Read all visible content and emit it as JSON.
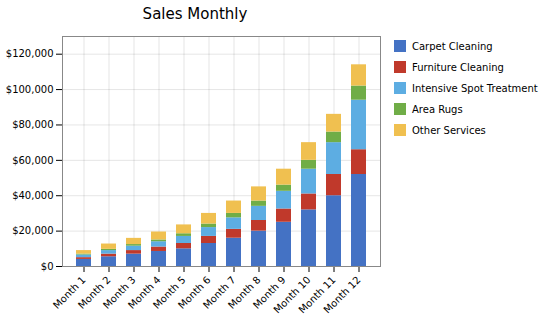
{
  "chart_data": {
    "type": "bar",
    "stacked": true,
    "title": "Sales Monthly",
    "categories": [
      "Month 1",
      "Month 2",
      "Month 3",
      "Month 4",
      "Month 5",
      "Month 6",
      "Month 7",
      "Month 8",
      "Month 9",
      "Month 10",
      "Month 11",
      "Month 12"
    ],
    "series": [
      {
        "name": "Carpet Cleaning",
        "color": "#4472C4",
        "values": [
          4000,
          5500,
          7000,
          8500,
          10000,
          13000,
          16000,
          20000,
          25000,
          32000,
          40000,
          52000
        ]
      },
      {
        "name": "Furniture Cleaning",
        "color": "#C0392B",
        "values": [
          1000,
          1500,
          2000,
          2500,
          3000,
          4000,
          5000,
          6000,
          7500,
          9000,
          12000,
          14000
        ]
      },
      {
        "name": "Intensive Spot Treatment",
        "color": "#5DADE2",
        "values": [
          1500,
          2000,
          2500,
          3000,
          4000,
          5000,
          6500,
          8000,
          10000,
          14000,
          18000,
          28000
        ]
      },
      {
        "name": "Area Rugs",
        "color": "#70AD47",
        "values": [
          500,
          700,
          900,
          1000,
          1500,
          2000,
          2500,
          3000,
          3500,
          5000,
          6000,
          8000
        ]
      },
      {
        "name": "Other Services",
        "color": "#F0C050",
        "values": [
          2000,
          3000,
          3500,
          4500,
          5000,
          6000,
          7000,
          8000,
          9000,
          10000,
          10000,
          12000
        ]
      }
    ],
    "ylim": [
      0,
      130000
    ],
    "yticks": [
      {
        "value": 0,
        "label": "$0"
      },
      {
        "value": 20000,
        "label": "$20,000"
      },
      {
        "value": 40000,
        "label": "$40,000"
      },
      {
        "value": 60000,
        "label": "$60,000"
      },
      {
        "value": 80000,
        "label": "$80,000"
      },
      {
        "value": 100000,
        "label": "$100,000"
      },
      {
        "value": 120000,
        "label": "$120,000"
      }
    ],
    "grid": true,
    "legend": "right"
  }
}
